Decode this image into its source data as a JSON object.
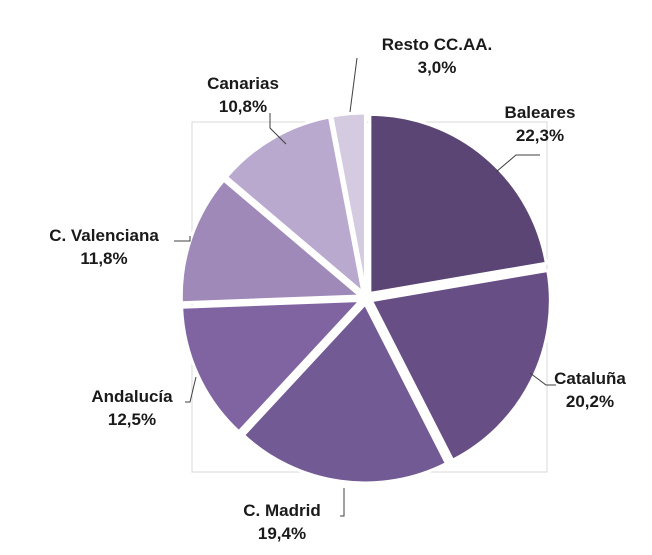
{
  "chart_data": {
    "type": "pie",
    "title": "",
    "slices": [
      {
        "label": "Baleares",
        "value": 22.3,
        "text": "22,3%",
        "color": "#5b4574"
      },
      {
        "label": "Cataluña",
        "value": 20.2,
        "text": "20,2%",
        "color": "#674f86"
      },
      {
        "label": "C. Madrid",
        "value": 19.4,
        "text": "19,4%",
        "color": "#725a94"
      },
      {
        "label": "Andalucía",
        "value": 12.5,
        "text": "12,5%",
        "color": "#8064a2"
      },
      {
        "label": "C. Valenciana",
        "value": 11.8,
        "text": "11,8%",
        "color": "#9e89b9"
      },
      {
        "label": "Canarias",
        "value": 10.8,
        "text": "10,8%",
        "color": "#b9a9ce"
      },
      {
        "label": "Resto CC.AA.",
        "value": 3.0,
        "text": "3,0%",
        "color": "#d4cbe1"
      }
    ],
    "legend": "none",
    "grid": false
  }
}
